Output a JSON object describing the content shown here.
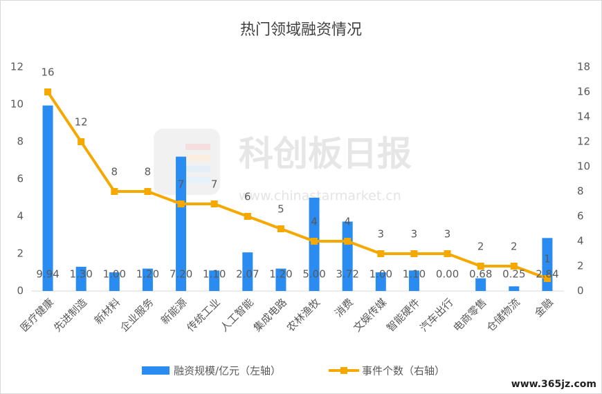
{
  "chart_data": {
    "type": "combo",
    "title": "热门领域融资情况",
    "categories": [
      "医疗健康",
      "先进制造",
      "新材料",
      "企业服务",
      "新能源",
      "传统工业",
      "人工智能",
      "集成电路",
      "农林渔牧",
      "消费",
      "文娱传媒",
      "智能硬件",
      "汽车出行",
      "电商零售",
      "仓储物流",
      "金融"
    ],
    "series": [
      {
        "name": "融资规模/亿元（左轴）",
        "type": "bar",
        "color": "#2a8cf0",
        "values": [
          9.94,
          1.3,
          1.0,
          1.2,
          7.2,
          1.1,
          2.07,
          1.2,
          5.0,
          3.72,
          1.0,
          1.1,
          0.0,
          0.68,
          0.25,
          2.84
        ],
        "value_labels": [
          "9.94",
          "1.30",
          "1.00",
          "1.20",
          "7.20",
          "1.10",
          "2.07",
          "1.20",
          "5.00",
          "3.72",
          "1.00",
          "1.10",
          "0.00",
          "0.68",
          "0.25",
          "2.84"
        ]
      },
      {
        "name": "事件个数（右轴）",
        "type": "line",
        "axis": "y2",
        "color": "#f5a800",
        "values": [
          16,
          12,
          8,
          8,
          7,
          7,
          6,
          5,
          4,
          4,
          3,
          3,
          3,
          2,
          2,
          1
        ]
      }
    ],
    "ylim": [
      0,
      12
    ],
    "yticks": [
      0,
      2,
      4,
      6,
      8,
      10,
      12
    ],
    "y2lim": [
      0,
      18
    ],
    "y2ticks": [
      0,
      2,
      4,
      6,
      8,
      10,
      12,
      14,
      16,
      18
    ],
    "legend": "bottom",
    "watermark": {
      "brand": "科创板日报",
      "url": "www.chinastarmarket.cn",
      "source": "www.365jz.com"
    }
  }
}
